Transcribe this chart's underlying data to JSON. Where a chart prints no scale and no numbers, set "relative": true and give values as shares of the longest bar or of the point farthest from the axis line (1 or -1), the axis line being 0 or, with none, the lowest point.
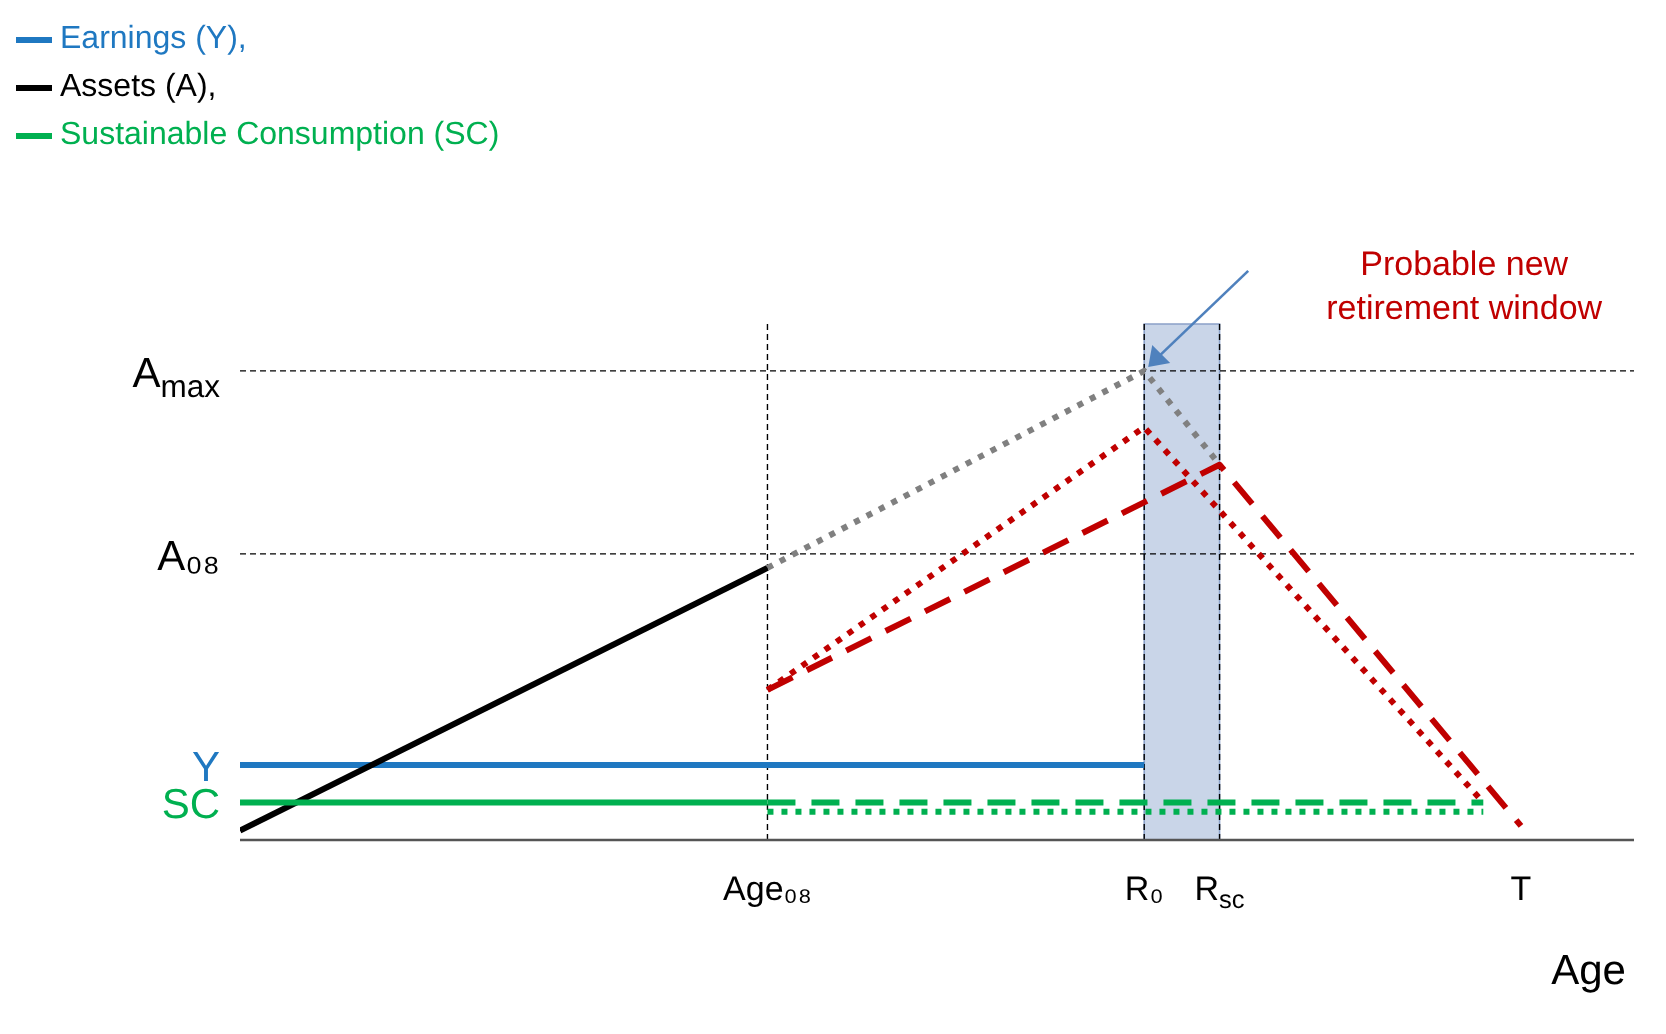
{
  "chart_data": {
    "type": "line",
    "relative": true,
    "xlabel": "Age",
    "legend": "top left",
    "categories": [
      null,
      null,
      null,
      null,
      null,
      null,
      null,
      null,
      null,
      null,
      null,
      null,
      null,
      null,
      "Age₀₈",
      null,
      null,
      null,
      null,
      null,
      null,
      null,
      null,
      null,
      "R₀",
      null,
      "R$_{sc}$",
      null,
      null,
      null,
      null,
      null,
      null,
      null,
      "T",
      null,
      null,
      null
    ],
    "series": [
      {
        "name": "Earnings (Y),",
        "color": "#1f78c1",
        "line_style": "solid",
        "values": [
          0.16,
          null,
          null,
          null,
          null,
          null,
          null,
          null,
          null,
          null,
          null,
          null,
          null,
          null,
          null,
          null,
          null,
          null,
          null,
          null,
          null,
          null,
          null,
          null,
          0.16,
          null,
          null,
          null,
          null,
          null,
          null,
          null,
          null,
          null,
          null,
          null,
          null,
          null
        ]
      },
      {
        "name": "Assets (A),",
        "color": "#000000",
        "line_style": "solid",
        "values": [
          0.02,
          null,
          null,
          null,
          null,
          null,
          null,
          null,
          null,
          null,
          null,
          null,
          null,
          null,
          0.58,
          null,
          null,
          null,
          null,
          null,
          null,
          null,
          null,
          null,
          null,
          null,
          null,
          null,
          null,
          null,
          null,
          null,
          null,
          null,
          null,
          null,
          null,
          null
        ]
      },
      {
        "name": "Sustainable Consumption (SC)",
        "color": "#00b050",
        "line_style": "solid",
        "values": [
          0.08,
          null,
          null,
          null,
          null,
          null,
          null,
          null,
          null,
          null,
          null,
          null,
          null,
          null,
          0.08,
          null,
          null,
          null,
          null,
          null,
          null,
          null,
          null,
          null,
          null,
          null,
          null,
          null,
          null,
          null,
          null,
          null,
          null,
          null,
          null,
          null,
          null,
          null
        ]
      },
      {
        "color": "#00b050",
        "line_style": "dashed",
        "values": [
          null,
          null,
          null,
          null,
          null,
          null,
          null,
          null,
          null,
          null,
          null,
          null,
          null,
          null,
          0.08,
          null,
          null,
          null,
          null,
          null,
          null,
          null,
          null,
          null,
          null,
          null,
          null,
          null,
          null,
          null,
          null,
          null,
          null,
          0.08,
          null,
          null,
          null,
          null
        ]
      },
      {
        "color": "#00b050",
        "line_style": "dotted",
        "values": [
          null,
          null,
          null,
          null,
          null,
          null,
          null,
          null,
          null,
          null,
          null,
          null,
          null,
          null,
          0.06,
          null,
          null,
          null,
          null,
          null,
          null,
          null,
          null,
          null,
          null,
          null,
          null,
          null,
          null,
          null,
          null,
          null,
          null,
          0.06,
          null,
          null,
          null,
          null
        ]
      },
      {
        "color": "#808080",
        "line_style": "dotted",
        "values": [
          null,
          null,
          null,
          null,
          null,
          null,
          null,
          null,
          null,
          null,
          null,
          null,
          null,
          null,
          0.58,
          null,
          null,
          null,
          null,
          null,
          null,
          null,
          null,
          null,
          1.0,
          null,
          0.8,
          null,
          null,
          null,
          null,
          null,
          null,
          null,
          null,
          null,
          null,
          null
        ]
      },
      {
        "color": "#c00000",
        "line_style": "dotted",
        "values": [
          null,
          null,
          null,
          null,
          null,
          null,
          null,
          null,
          null,
          null,
          null,
          null,
          null,
          null,
          0.32,
          null,
          null,
          null,
          null,
          null,
          null,
          null,
          null,
          null,
          0.88,
          null,
          null,
          null,
          null,
          null,
          null,
          null,
          null,
          0.08,
          null,
          null,
          null,
          null
        ]
      },
      {
        "color": "#c00000",
        "line_style": "dashed",
        "values": [
          null,
          null,
          null,
          null,
          null,
          null,
          null,
          null,
          null,
          null,
          null,
          null,
          null,
          null,
          0.32,
          null,
          null,
          null,
          null,
          null,
          null,
          null,
          null,
          null,
          null,
          null,
          0.8,
          null,
          null,
          null,
          null,
          null,
          null,
          null,
          0.03,
          null,
          null,
          null
        ]
      }
    ],
    "bands": [
      {
        "axis": "x",
        "from": "R₀",
        "to": "R$_{sc}$",
        "color": "#c9d5e8"
      }
    ],
    "ref_lines": [
      {
        "axis": "x",
        "value": "Age₀₈"
      },
      {
        "axis": "x",
        "value": "R₀"
      },
      {
        "axis": "x",
        "value": "R$_{sc}$"
      },
      {
        "axis": "y",
        "value": 1.0,
        "label": "A$_{max}$"
      },
      {
        "axis": "y",
        "value": 0.61,
        "label": "A₀₈"
      }
    ],
    "annotations": [
      "Y",
      "SC",
      "Probable new retirement window"
    ]
  }
}
